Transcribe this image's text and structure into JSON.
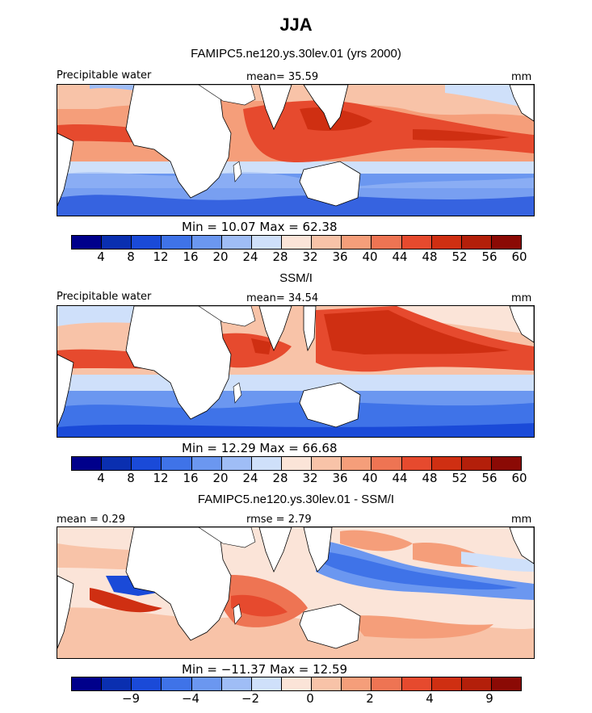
{
  "title": "JJA",
  "panels": [
    {
      "subtitle": "FAMIPC5.ne120.ys.30lev.01 (yrs 2000)",
      "left_label": "Precipitable water",
      "center_label": "mean=  35.59",
      "right_label": "mm",
      "minmax": "Min =  10.07 Max =  62.38",
      "colorbar_ticks": [
        "4",
        "8",
        "12",
        "16",
        "20",
        "24",
        "28",
        "32",
        "36",
        "40",
        "44",
        "48",
        "52",
        "56",
        "60"
      ]
    },
    {
      "subtitle": "SSM/I",
      "left_label": "Precipitable water",
      "center_label": "mean=  34.54",
      "right_label": "mm",
      "minmax": "Min =  12.29 Max =  66.68",
      "colorbar_ticks": [
        "4",
        "8",
        "12",
        "16",
        "20",
        "24",
        "28",
        "32",
        "36",
        "40",
        "44",
        "48",
        "52",
        "56",
        "60"
      ]
    },
    {
      "subtitle": "FAMIPC5.ne120.ys.30lev.01 - SSM/I",
      "left_label": "mean =   0.29",
      "center_label": "rmse =   2.79",
      "right_label": "mm",
      "minmax": "Min = −11.37 Max =  12.59",
      "colorbar_ticks": [
        "−9",
        "−4",
        "−2",
        "0",
        "2",
        "4",
        "9"
      ]
    }
  ],
  "colors": {
    "colorbar": [
      "#00008b",
      "#0a2fb0",
      "#1a4ad8",
      "#3f73e8",
      "#6b97f0",
      "#9fbdf6",
      "#cfe0fa",
      "#fbe4d8",
      "#f8c3a8",
      "#f59e7a",
      "#ee7453",
      "#e64a2e",
      "#cf2f12",
      "#b31f0a",
      "#8b0a05"
    ],
    "land": "#ffffff",
    "coast": "#000000"
  }
}
